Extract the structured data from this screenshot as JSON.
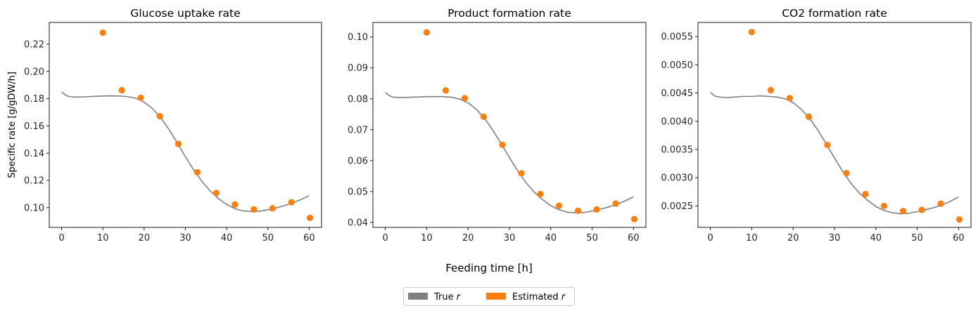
{
  "figure": {
    "xlabel": "Feeding time [h]",
    "ylabel": "Specific rate [g/gDW/h]",
    "legend": {
      "placement": "bottom-center",
      "items": [
        {
          "label": "True r",
          "color": "#808080"
        },
        {
          "label": "Estimated r",
          "color": "#ff7f0e"
        }
      ]
    }
  },
  "chart_data": [
    {
      "type": "scatter",
      "title": "Glucose uptake rate",
      "xlim": [
        -3,
        63
      ],
      "ylim": [
        0.0855,
        0.236
      ],
      "xticks": [
        0,
        10,
        20,
        30,
        40,
        50,
        60
      ],
      "yticks": [
        0.1,
        0.12,
        0.14,
        0.16,
        0.18,
        0.2,
        0.22
      ],
      "ytick_labels": [
        "0.10",
        "0.12",
        "0.14",
        "0.16",
        "0.18",
        "0.20",
        "0.22"
      ],
      "series": [
        {
          "name": "True r",
          "kind": "line",
          "color": "#808080",
          "x": [
            0,
            1,
            2,
            4,
            6,
            8,
            10,
            12,
            14,
            16,
            18,
            20,
            22,
            24,
            26,
            28,
            30,
            32,
            34,
            36,
            38,
            40,
            42,
            44,
            46,
            48,
            50,
            52,
            54,
            56,
            58,
            60
          ],
          "y": [
            0.185,
            0.1825,
            0.1815,
            0.1812,
            0.1814,
            0.1818,
            0.182,
            0.1821,
            0.182,
            0.1815,
            0.1803,
            0.1775,
            0.1728,
            0.1662,
            0.1575,
            0.1477,
            0.1375,
            0.1277,
            0.1193,
            0.1123,
            0.1067,
            0.1023,
            0.0993,
            0.0976,
            0.0971,
            0.0974,
            0.0984,
            0.0998,
            0.1015,
            0.1035,
            0.1059,
            0.1088
          ]
        },
        {
          "name": "Estimated r",
          "kind": "scatter",
          "color": "#ff7f0e",
          "x": [
            10.0,
            14.6,
            19.2,
            23.8,
            28.3,
            32.9,
            37.5,
            42.0,
            46.6,
            51.1,
            55.7,
            60.2
          ],
          "y": [
            0.2285,
            0.1862,
            0.1807,
            0.1671,
            0.1468,
            0.126,
            0.1108,
            0.1023,
            0.0987,
            0.0995,
            0.1039,
            0.0925
          ]
        }
      ]
    },
    {
      "type": "scatter",
      "title": "Product formation rate",
      "xlim": [
        -3,
        63
      ],
      "ylim": [
        0.0384,
        0.1047
      ],
      "xticks": [
        0,
        10,
        20,
        30,
        40,
        50,
        60
      ],
      "yticks": [
        0.04,
        0.05,
        0.06,
        0.07,
        0.08,
        0.09,
        0.1
      ],
      "ytick_labels": [
        "0.04",
        "0.05",
        "0.06",
        "0.07",
        "0.08",
        "0.09",
        "0.10"
      ],
      "series": [
        {
          "name": "True r",
          "kind": "line",
          "color": "#808080",
          "x": [
            0,
            1,
            2,
            4,
            6,
            8,
            10,
            12,
            14,
            16,
            18,
            20,
            22,
            24,
            26,
            28,
            30,
            32,
            34,
            36,
            38,
            40,
            42,
            44,
            46,
            48,
            50,
            52,
            54,
            56,
            58,
            60
          ],
          "y": [
            0.082,
            0.081,
            0.0805,
            0.0804,
            0.0805,
            0.0806,
            0.0807,
            0.0807,
            0.0807,
            0.0805,
            0.0799,
            0.0787,
            0.0766,
            0.0737,
            0.0698,
            0.0655,
            0.061,
            0.0567,
            0.0529,
            0.0498,
            0.0474,
            0.0454,
            0.0441,
            0.0433,
            0.0431,
            0.0432,
            0.0437,
            0.0443,
            0.045,
            0.0459,
            0.047,
            0.0483
          ]
        },
        {
          "name": "Estimated r",
          "kind": "scatter",
          "color": "#ff7f0e",
          "x": [
            10.0,
            14.6,
            19.2,
            23.8,
            28.3,
            32.9,
            37.5,
            42.0,
            46.6,
            51.1,
            55.7,
            60.2
          ],
          "y": [
            0.1015,
            0.0827,
            0.0802,
            0.0742,
            0.0651,
            0.0559,
            0.0492,
            0.0454,
            0.0438,
            0.0442,
            0.0461,
            0.0411
          ]
        }
      ]
    },
    {
      "type": "scatter",
      "title": "CO2 formation rate",
      "xlim": [
        -3,
        63
      ],
      "ylim": [
        0.00212,
        0.00575
      ],
      "xticks": [
        0,
        10,
        20,
        30,
        40,
        50,
        60
      ],
      "yticks": [
        0.0025,
        0.003,
        0.0035,
        0.004,
        0.0045,
        0.005,
        0.0055
      ],
      "ytick_labels": [
        "0.0025",
        "0.0030",
        "0.0035",
        "0.0040",
        "0.0045",
        "0.0050",
        "0.0055"
      ],
      "series": [
        {
          "name": "True r",
          "kind": "line",
          "color": "#808080",
          "x": [
            0,
            1,
            2,
            4,
            6,
            8,
            10,
            12,
            14,
            16,
            18,
            20,
            22,
            24,
            26,
            28,
            30,
            32,
            34,
            36,
            38,
            40,
            42,
            44,
            46,
            48,
            50,
            52,
            54,
            56,
            58,
            60
          ],
          "y": [
            0.00451,
            0.00445,
            0.00443,
            0.00442,
            0.00443,
            0.00444,
            0.00444,
            0.00445,
            0.00444,
            0.00443,
            0.0044,
            0.00433,
            0.00421,
            0.00405,
            0.00384,
            0.0036,
            0.00335,
            0.00311,
            0.0029,
            0.00273,
            0.0026,
            0.00249,
            0.00242,
            0.00238,
            0.00236,
            0.00237,
            0.0024,
            0.00243,
            0.00247,
            0.00252,
            0.00258,
            0.00266
          ]
        },
        {
          "name": "Estimated r",
          "kind": "scatter",
          "color": "#ff7f0e",
          "x": [
            10.0,
            14.6,
            19.2,
            23.8,
            28.3,
            32.9,
            37.5,
            42.0,
            46.6,
            51.1,
            55.7,
            60.2
          ],
          "y": [
            0.00558,
            0.00455,
            0.00441,
            0.00408,
            0.00358,
            0.00308,
            0.00271,
            0.0025,
            0.00241,
            0.00243,
            0.00254,
            0.00226
          ]
        }
      ]
    }
  ]
}
